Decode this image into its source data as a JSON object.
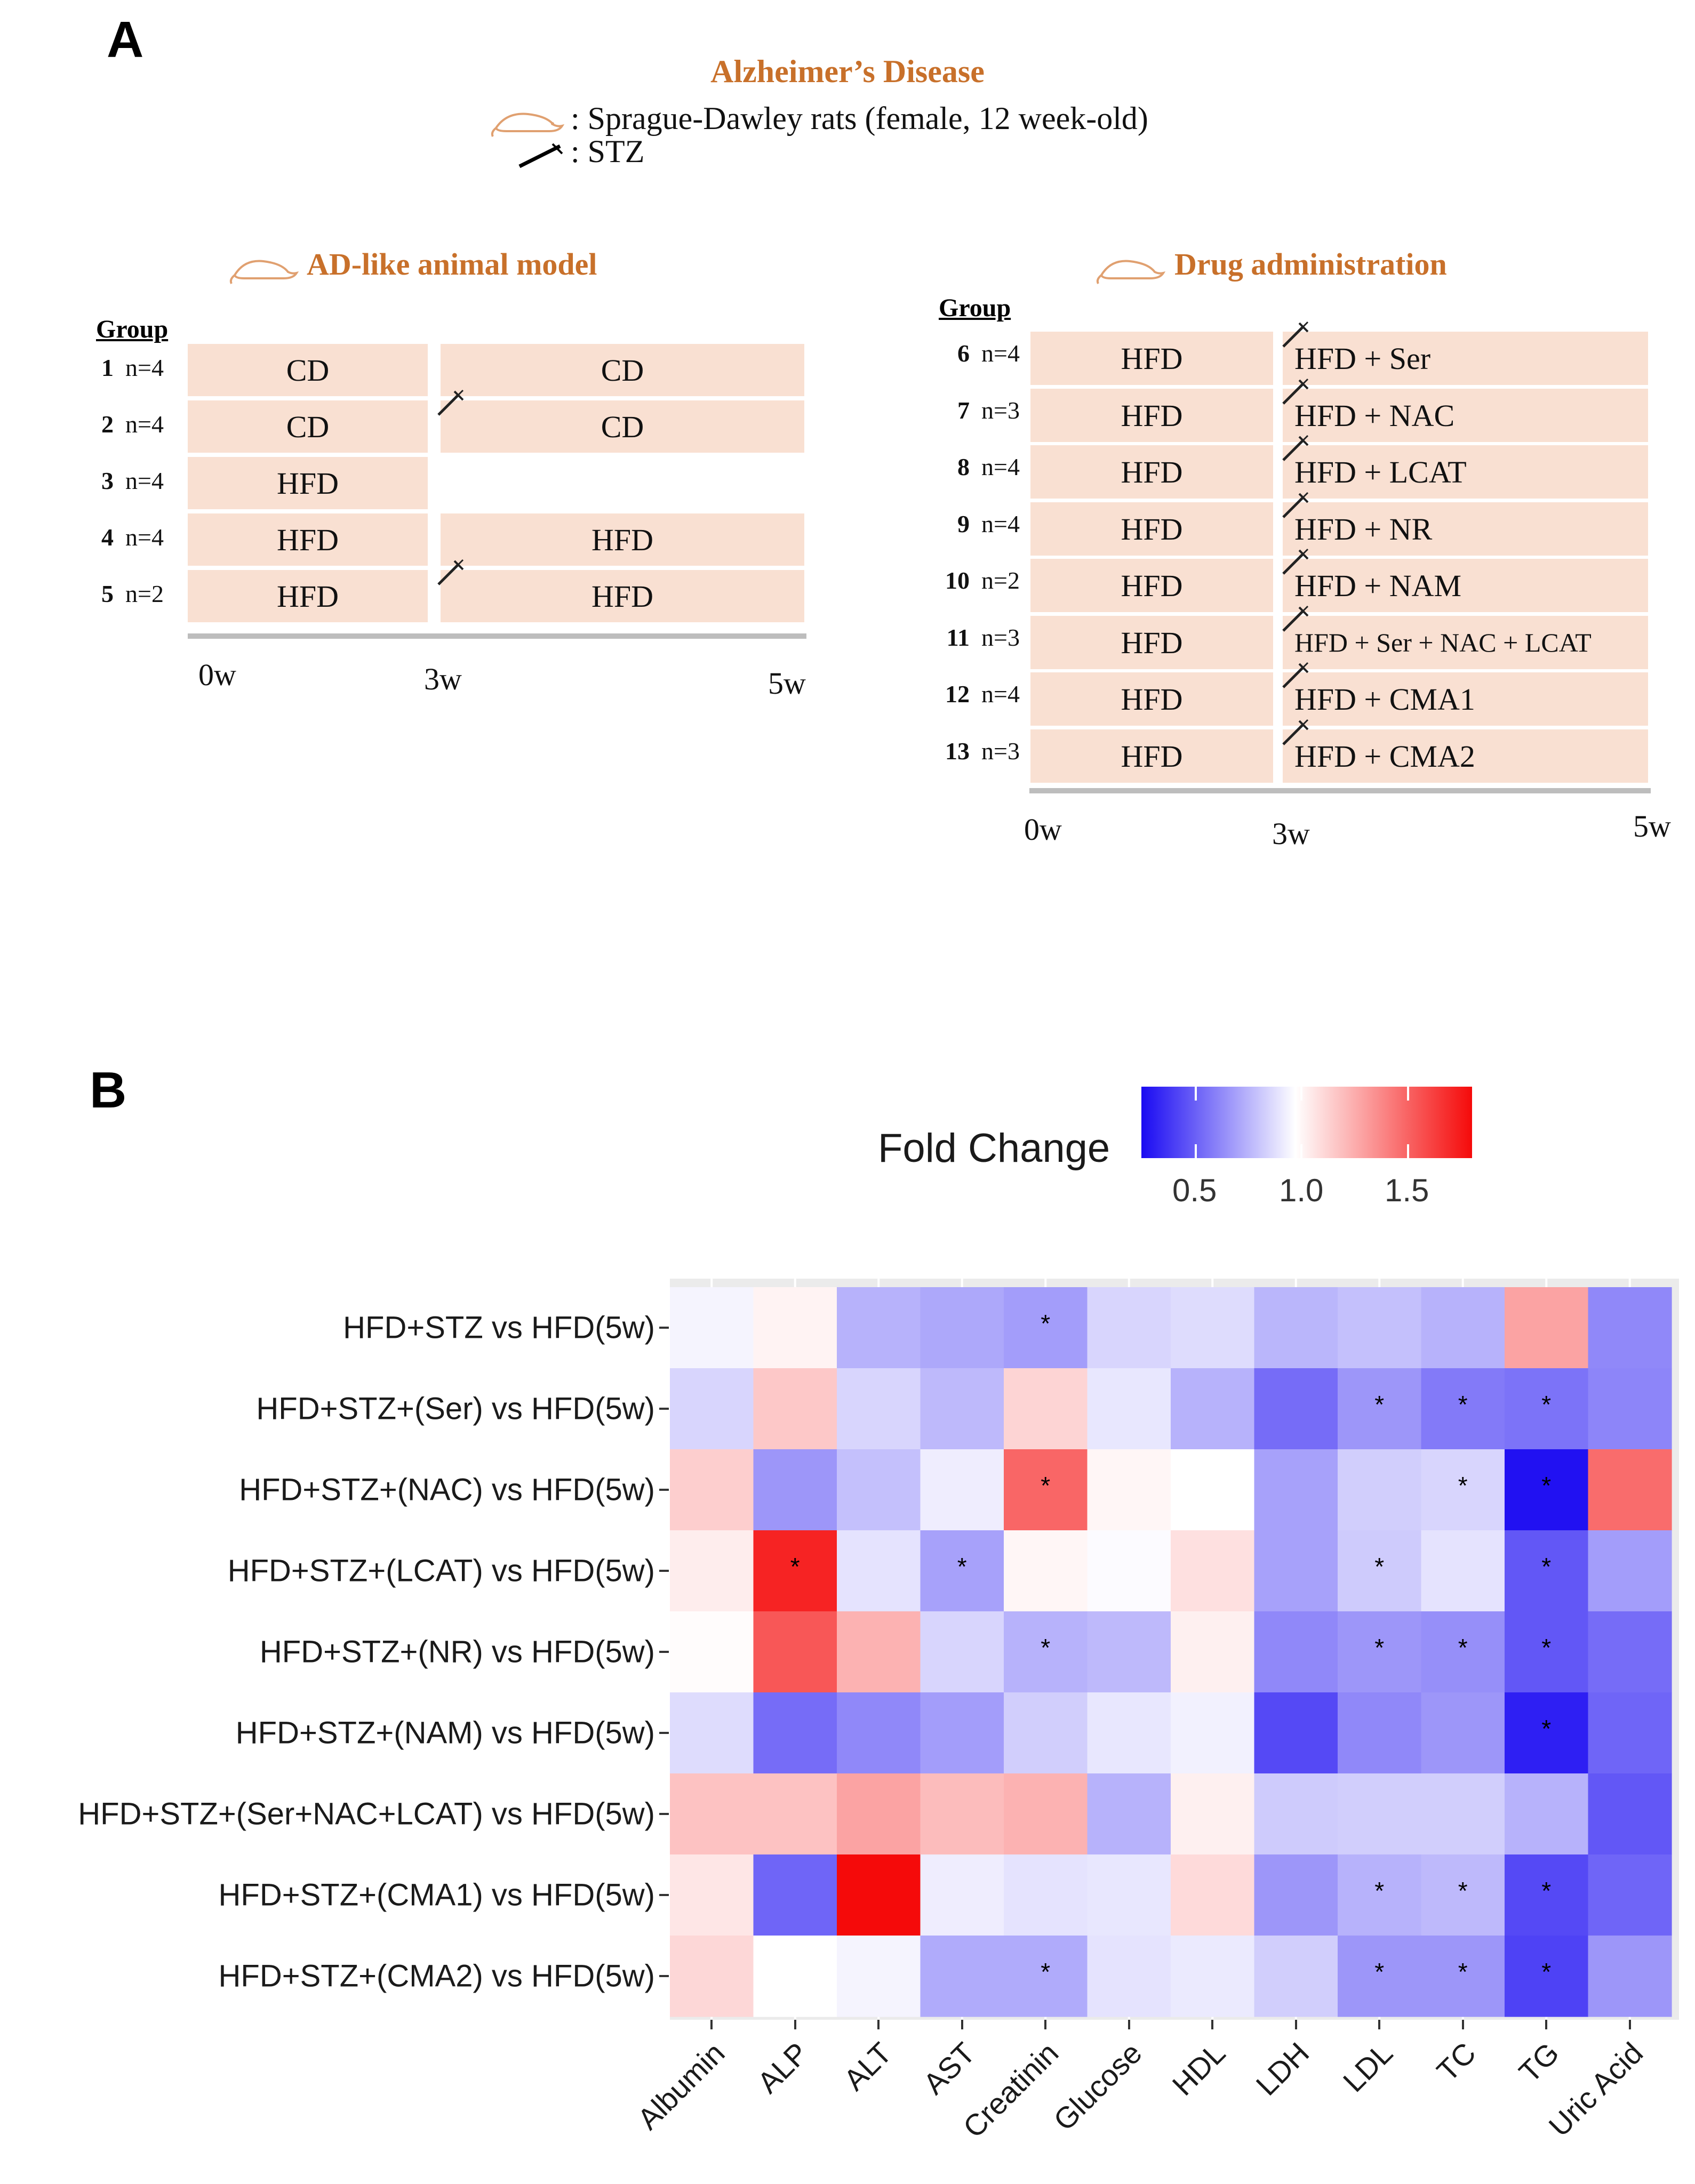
{
  "panel_a": {
    "letter": "A",
    "title": "Alzheimer’s Disease",
    "legend_rat": ": Sprague-Dawley rats (female, 12 week-old)",
    "legend_stz": ": STZ",
    "left": {
      "title": "AD-like animal model",
      "group_header": "Group",
      "groups": [
        {
          "num": "1",
          "n": "n=4",
          "first": "CD",
          "second": "CD"
        },
        {
          "num": "2",
          "n": "n=4",
          "first": "CD",
          "second": "CD"
        },
        {
          "num": "3",
          "n": "n=4",
          "first": "HFD",
          "second": ""
        },
        {
          "num": "4",
          "n": "n=4",
          "first": "HFD",
          "second": "HFD"
        },
        {
          "num": "5",
          "n": "n=2",
          "first": "HFD",
          "second": "HFD"
        }
      ],
      "ticks": [
        "0w",
        "3w",
        "5w"
      ]
    },
    "right": {
      "title": "Drug administration",
      "group_header": "Group",
      "groups": [
        {
          "num": "6",
          "n": "n=4",
          "first": "HFD",
          "second": "HFD +  Ser"
        },
        {
          "num": "7",
          "n": "n=3",
          "first": "HFD",
          "second": "HFD + NAC"
        },
        {
          "num": "8",
          "n": "n=4",
          "first": "HFD",
          "second": "HFD + LCAT"
        },
        {
          "num": "9",
          "n": "n=4",
          "first": "HFD",
          "second": "HFD + NR"
        },
        {
          "num": "10",
          "n": "n=2",
          "first": "HFD",
          "second": "HFD + NAM"
        },
        {
          "num": "11",
          "n": "n=3",
          "first": "HFD",
          "second": "HFD + Ser + NAC + LCAT"
        },
        {
          "num": "12",
          "n": "n=4",
          "first": "HFD",
          "second": "HFD + CMA1"
        },
        {
          "num": "13",
          "n": "n=3",
          "first": "HFD",
          "second": "HFD + CMA2"
        }
      ],
      "ticks": [
        "0w",
        "3w",
        "5w"
      ]
    }
  },
  "panel_b": {
    "letter": "B",
    "legend_title": "Fold Change",
    "legend_ticks": [
      "0.5",
      "1.0",
      "1.5"
    ],
    "legend_range": [
      0.3,
      1.8
    ],
    "colors": {
      "low": "#1a0af2",
      "mid": "#ffffff",
      "high": "#f50a0a"
    }
  },
  "chart_data": {
    "type": "heatmap",
    "title": "",
    "legend_title": "Fold Change",
    "value_range": [
      0.3,
      1.8
    ],
    "x_categories": [
      "Albumin",
      "ALP",
      "ALT",
      "AST",
      "Creatinin",
      "Glucose",
      "HDL",
      "LDH",
      "LDL",
      "TC",
      "TG",
      "Uric Acid"
    ],
    "y_categories": [
      "HFD+STZ vs HFD(5w)",
      "HFD+STZ+(Ser) vs HFD(5w)",
      "HFD+STZ+(NAC) vs HFD(5w)",
      "HFD+STZ+(LCAT) vs HFD(5w)",
      "HFD+STZ+(NR) vs HFD(5w)",
      "HFD+STZ+(NAM) vs HFD(5w)",
      "HFD+STZ+(Ser+NAC+LCAT) vs HFD(5w)",
      "HFD+STZ+(CMA1) vs HFD(5w)",
      "HFD+STZ+(CMA2) vs HFD(5w)"
    ],
    "values": [
      [
        0.97,
        1.04,
        0.78,
        0.75,
        0.72,
        0.88,
        0.9,
        0.79,
        0.82,
        0.78,
        1.3,
        0.66
      ],
      [
        0.88,
        1.18,
        0.88,
        0.8,
        1.14,
        0.93,
        0.78,
        0.58,
        0.7,
        0.62,
        0.6,
        0.65
      ],
      [
        1.16,
        0.7,
        0.82,
        0.95,
        1.5,
        1.03,
        1.0,
        0.73,
        0.86,
        0.88,
        0.32,
        1.48
      ],
      [
        1.06,
        1.72,
        0.92,
        0.73,
        1.03,
        0.99,
        1.1,
        0.73,
        0.85,
        0.92,
        0.52,
        0.72
      ],
      [
        1.01,
        1.55,
        1.25,
        0.88,
        0.78,
        0.8,
        1.05,
        0.66,
        0.7,
        0.68,
        0.52,
        0.58
      ],
      [
        0.9,
        0.58,
        0.66,
        0.72,
        0.86,
        0.93,
        0.96,
        0.48,
        0.66,
        0.7,
        0.36,
        0.56
      ],
      [
        1.2,
        1.2,
        1.3,
        1.22,
        1.25,
        0.78,
        1.05,
        0.85,
        0.86,
        0.86,
        0.78,
        0.52
      ],
      [
        1.08,
        0.56,
        1.8,
        0.95,
        0.92,
        0.93,
        1.12,
        0.7,
        0.78,
        0.8,
        0.48,
        0.56
      ],
      [
        1.13,
        1.0,
        0.97,
        0.76,
        0.76,
        0.92,
        0.94,
        0.86,
        0.7,
        0.7,
        0.46,
        0.7
      ]
    ],
    "significance_mark": "*",
    "significant": [
      [
        0,
        4
      ],
      [
        1,
        8
      ],
      [
        1,
        9
      ],
      [
        1,
        10
      ],
      [
        2,
        4
      ],
      [
        2,
        9
      ],
      [
        2,
        10
      ],
      [
        3,
        1
      ],
      [
        3,
        3
      ],
      [
        3,
        8
      ],
      [
        3,
        10
      ],
      [
        4,
        4
      ],
      [
        4,
        8
      ],
      [
        4,
        9
      ],
      [
        4,
        10
      ],
      [
        5,
        10
      ],
      [
        7,
        8
      ],
      [
        7,
        9
      ],
      [
        7,
        10
      ],
      [
        8,
        4
      ],
      [
        8,
        8
      ],
      [
        8,
        9
      ],
      [
        8,
        10
      ]
    ]
  }
}
